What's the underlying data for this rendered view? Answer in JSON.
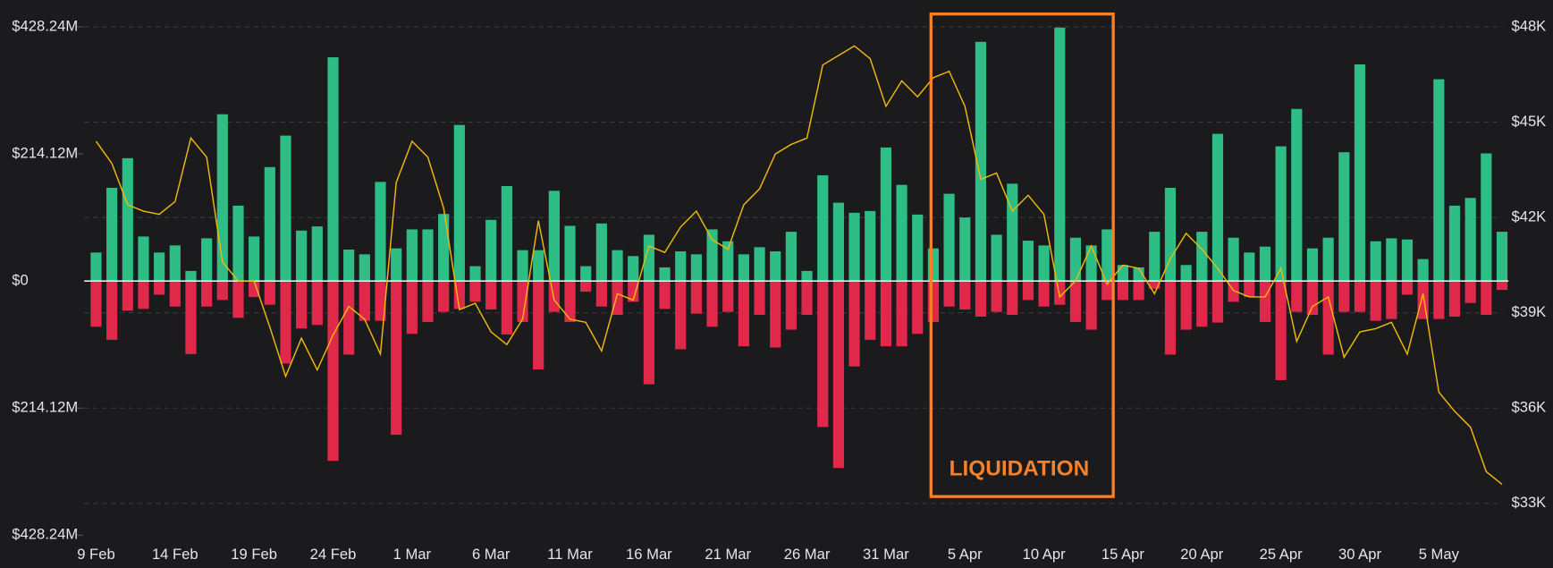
{
  "chart_data": {
    "type": "bar",
    "categories": [
      "9 Feb",
      null,
      null,
      null,
      null,
      "14 Feb",
      null,
      null,
      null,
      null,
      "19 Feb",
      null,
      null,
      null,
      null,
      "24 Feb",
      null,
      null,
      null,
      null,
      "1 Mar",
      null,
      null,
      null,
      null,
      "6 Mar",
      null,
      null,
      null,
      null,
      "11 Mar",
      null,
      null,
      null,
      null,
      "16 Mar",
      null,
      null,
      null,
      null,
      "21 Mar",
      null,
      null,
      null,
      null,
      "26 Mar",
      null,
      null,
      null,
      null,
      "31 Mar",
      null,
      null,
      null,
      null,
      "5 Apr",
      null,
      null,
      null,
      null,
      "10 Apr",
      null,
      null,
      null,
      null,
      "15 Apr",
      null,
      null,
      null,
      null,
      "20 Apr",
      null,
      null,
      null,
      null,
      "25 Apr",
      null,
      null,
      null,
      null,
      "30 Apr",
      null,
      null,
      null,
      null,
      "5 May",
      null,
      null,
      null,
      null
    ],
    "series": [
      {
        "color": "#2dbd85",
        "values": [
          48,
          157,
          207,
          75,
          48,
          60,
          17,
          72,
          281,
          127,
          75,
          192,
          245,
          85,
          92,
          377,
          53,
          45,
          167,
          55,
          87,
          87,
          113,
          263,
          25,
          103,
          160,
          52,
          52,
          152,
          93,
          25,
          97,
          52,
          42,
          78,
          23,
          50,
          45,
          87,
          67,
          45,
          57,
          50,
          83,
          17,
          178,
          132,
          115,
          118,
          225,
          162,
          112,
          55,
          147,
          107,
          403,
          78,
          164,
          68,
          60,
          427,
          73,
          60,
          87,
          27,
          23,
          83,
          157,
          27,
          83,
          248,
          73,
          48,
          58,
          227,
          290,
          55,
          73,
          217,
          365,
          67,
          72,
          70,
          37,
          340,
          127,
          140,
          215,
          83
        ]
      },
      {
        "color": "#e0294a",
        "values": [
          -77,
          -99,
          -50,
          -47,
          -23,
          -43,
          -123,
          -43,
          -32,
          -62,
          -27,
          -40,
          -139,
          -80,
          -74,
          -303,
          -124,
          -67,
          -67,
          -259,
          -89,
          -69,
          -52,
          -47,
          -35,
          -48,
          -90,
          -69,
          -149,
          -52,
          -69,
          -18,
          -43,
          -57,
          -35,
          -174,
          -47,
          -115,
          -55,
          -77,
          -52,
          -110,
          -57,
          -112,
          -82,
          -57,
          -246,
          -315,
          -144,
          -99,
          -110,
          -110,
          -89,
          -69,
          -43,
          -48,
          -60,
          -52,
          -57,
          -32,
          -43,
          -40,
          -69,
          -82,
          -32,
          -32,
          -32,
          -13,
          -124,
          -82,
          -77,
          -70,
          -35,
          -27,
          -69,
          -167,
          -52,
          -57,
          -124,
          -52,
          -52,
          -67,
          -64,
          -23,
          -64,
          -64,
          -60,
          -37,
          -57,
          -15
        ]
      },
      {
        "color": "#f0b90b",
        "type": "line",
        "axis": "y2",
        "values": [
          44.4,
          43.7,
          42.4,
          42.2,
          42.1,
          42.5,
          44.5,
          43.9,
          40.6,
          40.0,
          40.0,
          38.55,
          37.0,
          38.2,
          37.2,
          38.3,
          39.2,
          38.8,
          37.7,
          43.1,
          44.4,
          43.9,
          42.3,
          39.1,
          39.3,
          38.4,
          38.0,
          38.8,
          41.9,
          39.4,
          38.8,
          38.7,
          37.8,
          39.6,
          39.4,
          41.1,
          40.9,
          41.7,
          42.2,
          41.3,
          41.0,
          42.4,
          42.9,
          44.0,
          44.3,
          44.5,
          46.8,
          47.1,
          47.4,
          47.0,
          45.5,
          46.3,
          45.8,
          46.4,
          46.6,
          45.5,
          43.2,
          43.4,
          42.2,
          42.7,
          42.1,
          39.5,
          40.0,
          41.1,
          39.9,
          40.5,
          40.4,
          39.6,
          40.7,
          41.5,
          41.0,
          40.4,
          39.7,
          39.5,
          39.5,
          40.4,
          38.1,
          39.2,
          39.5,
          37.6,
          38.4,
          38.5,
          38.7,
          37.7,
          39.6,
          36.5,
          35.9,
          35.4,
          34.0,
          33.6
        ]
      }
    ],
    "ylim": [
      -428.24,
      428.24
    ],
    "yticks": [
      {
        "value": 428.24,
        "label": "$428.24M"
      },
      {
        "value": 214.12,
        "label": "$214.12M"
      },
      {
        "value": 0,
        "label": "$0"
      },
      {
        "value": -214.12,
        "label": "$214.12M"
      },
      {
        "value": -428.24,
        "label": "$428.24M"
      }
    ],
    "y2lim": [
      32,
      48
    ],
    "y2ticks": [
      {
        "value": 48,
        "label": "$48K"
      },
      {
        "value": 45,
        "label": "$45K"
      },
      {
        "value": 42,
        "label": "$42K"
      },
      {
        "value": 39,
        "label": "$39K"
      },
      {
        "value": 36,
        "label": "$36K"
      },
      {
        "value": 33,
        "label": "$33K"
      }
    ],
    "grid": true,
    "annotation": {
      "text": "LIQUIDATION",
      "color": "#f5822a"
    }
  }
}
